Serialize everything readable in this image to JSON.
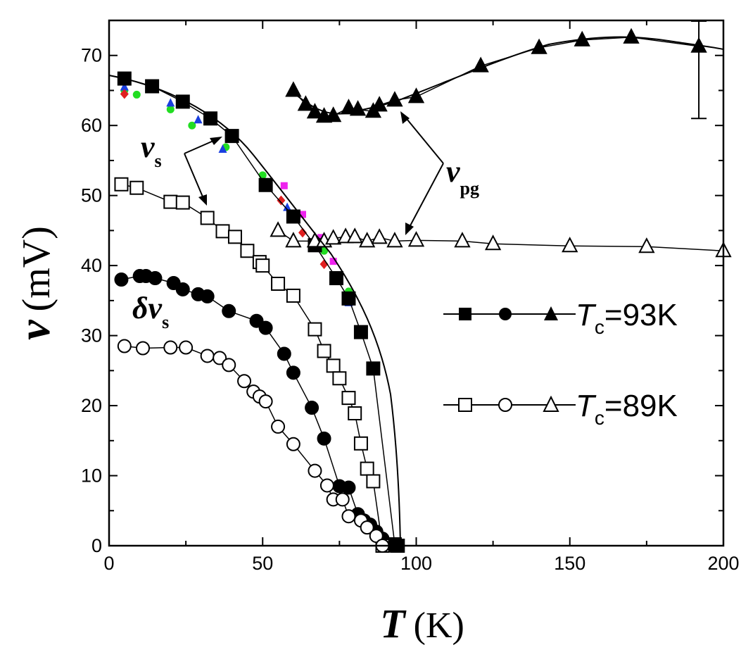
{
  "chart_data": {
    "type": "scatter",
    "title": "",
    "xlabel": "T",
    "xunit": "(K)",
    "ylabel": "v",
    "yunit": "(mV)",
    "xlim": [
      0,
      200
    ],
    "ylim": [
      0,
      75
    ],
    "xticks": [
      "0",
      "50",
      "100",
      "150",
      "200"
    ],
    "yticks": [
      "0",
      "10",
      "20",
      "30",
      "40",
      "50",
      "60",
      "70"
    ],
    "annotations": {
      "vs": {
        "main": "v",
        "sub": "s"
      },
      "dvs": {
        "main": "δv",
        "sub": "s"
      },
      "vpg": {
        "main": "v",
        "sub": "pg"
      }
    },
    "legend": [
      {
        "pre": "T",
        "sub": "c",
        "post": "=93K",
        "filled": true
      },
      {
        "pre": "T",
        "sub": "c",
        "post": "=89K",
        "filled": false
      }
    ],
    "series": [
      {
        "name": "vs Tc=93K",
        "marker": "square",
        "filled": true,
        "x": [
          5,
          14,
          24,
          33,
          40,
          51,
          60,
          67,
          74,
          78,
          82,
          86,
          93,
          94
        ],
        "y": [
          66.7,
          65.6,
          63.4,
          61,
          58.5,
          51.5,
          47,
          42.9,
          38.2,
          35.3,
          30.5,
          25.3,
          0.2,
          0
        ]
      },
      {
        "name": "dvs Tc=93K",
        "marker": "circle",
        "filled": true,
        "x": [
          4,
          10,
          12,
          15,
          21,
          24,
          29,
          32,
          39,
          48,
          51,
          57,
          60,
          66,
          70,
          75,
          78,
          81,
          83,
          85,
          87,
          89,
          92
        ],
        "y": [
          38,
          38.5,
          38.5,
          38.2,
          37.5,
          36.6,
          35.9,
          35.6,
          33.5,
          32.1,
          31.1,
          27.4,
          24.7,
          19.7,
          15.3,
          8.5,
          8.3,
          4.5,
          3.6,
          3,
          2,
          1,
          0
        ]
      },
      {
        "name": "vpg Tc=93K",
        "marker": "triangle",
        "filled": true,
        "x": [
          60,
          64,
          67,
          70,
          73,
          78,
          81,
          86,
          88,
          93,
          100,
          121,
          140,
          154,
          170,
          192
        ],
        "y": [
          65,
          63,
          61.9,
          61.3,
          61.4,
          62.5,
          62.3,
          62,
          62.9,
          63.6,
          64.1,
          68.5,
          71.1,
          72.2,
          72.6,
          71.3
        ]
      },
      {
        "name": "vs Tc=89K",
        "marker": "square",
        "filled": false,
        "x": [
          4,
          9,
          20,
          24,
          32,
          37,
          41,
          45,
          49,
          50,
          55,
          60,
          67,
          70,
          73,
          75,
          78,
          80,
          82,
          84,
          86,
          89
        ],
        "y": [
          51.6,
          51.1,
          49.1,
          49,
          46.8,
          44.9,
          44.1,
          42.1,
          40.5,
          40,
          37.4,
          35.7,
          30.9,
          27.8,
          25.7,
          23.9,
          21.1,
          18.9,
          14.6,
          11,
          9.2,
          0
        ]
      },
      {
        "name": "dvs Tc=89K",
        "marker": "circle",
        "filled": false,
        "x": [
          5,
          11,
          20,
          25,
          32,
          36,
          39,
          44,
          47,
          49,
          51,
          55,
          60,
          67,
          71,
          73,
          76,
          78,
          82,
          84,
          87,
          89
        ],
        "y": [
          28.5,
          28.2,
          28.3,
          28.3,
          27.1,
          26.8,
          25.8,
          23.5,
          22,
          21.3,
          20.6,
          17,
          14.5,
          10.7,
          8.6,
          6.6,
          6.6,
          4.2,
          3.6,
          2.6,
          1.4,
          0
        ]
      },
      {
        "name": "vpg Tc=89K",
        "marker": "triangle",
        "filled": false,
        "x": [
          55,
          60,
          67,
          70,
          73,
          77,
          80,
          84,
          88,
          93,
          100,
          115,
          125,
          150,
          175,
          200
        ],
        "y": [
          45,
          43.5,
          43.5,
          43.5,
          43.9,
          44.1,
          44.1,
          43.5,
          44,
          43.5,
          43.6,
          43.5,
          43.1,
          42.8,
          42.7,
          42.1
        ]
      },
      {
        "name": "extra green",
        "marker": "circle-small",
        "color": "#22dd22",
        "x": [
          5,
          9,
          20,
          27,
          38,
          50,
          70,
          78
        ],
        "y": [
          65,
          64.4,
          62.3,
          60,
          56.9,
          52.9,
          42.1,
          36.3
        ]
      },
      {
        "name": "extra blue",
        "marker": "triangle-small",
        "color": "#1a3fe0",
        "x": [
          5,
          20,
          29,
          37,
          58,
          78
        ],
        "y": [
          65.5,
          63.2,
          60.8,
          56.6,
          48.3,
          34.7
        ]
      },
      {
        "name": "extra red",
        "marker": "diamond-small",
        "color": "#e02020",
        "x": [
          5,
          56,
          63,
          70
        ],
        "y": [
          64.5,
          49.3,
          44.7,
          40.2
        ]
      },
      {
        "name": "extra magenta",
        "marker": "square-small",
        "color": "#ee22ee",
        "x": [
          57,
          63,
          69,
          73
        ],
        "y": [
          51.4,
          47.3,
          44,
          40.6
        ]
      }
    ],
    "error_bar": {
      "x": 192,
      "y_low": 61,
      "y_high": 75
    }
  }
}
